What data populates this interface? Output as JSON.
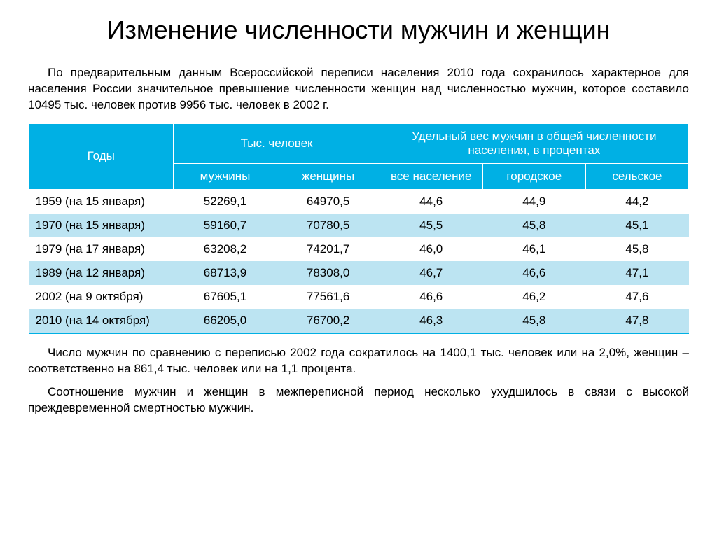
{
  "title": "Изменение численности мужчин и женщин",
  "intro": "По предварительным данным Всероссийской переписи населения 2010 года сохранилось характерное для населения России значительное превышение численности женщин над численностью мужчин, которое составило 10495 тыс. человек против 9956 тыс. человек в 2002 г.",
  "table": {
    "type": "table",
    "header_bg": "#00b0e4",
    "header_text_color": "#ffffff",
    "row_even_bg": "#bce4f2",
    "row_odd_bg": "#ffffff",
    "bottom_border_color": "#00b0e4",
    "columns": {
      "years": "Годы",
      "thousand_people": "Тыс. человек",
      "share": "Удельный вес мужчин в общей численности населения, в процентах",
      "men": "мужчины",
      "women": "женщины",
      "all": "все население",
      "urban": "городское",
      "rural": "сельское"
    },
    "rows": [
      {
        "year": "1959 (на 15 января)",
        "men": "52269,1",
        "women": "64970,5",
        "all": "44,6",
        "urban": "44,9",
        "rural": "44,2"
      },
      {
        "year": "1970 (на 15 января)",
        "men": "59160,7",
        "women": "70780,5",
        "all": "45,5",
        "urban": "45,8",
        "rural": "45,1"
      },
      {
        "year": "1979 (на 17 января)",
        "men": "63208,2",
        "women": "74201,7",
        "all": "46,0",
        "urban": "46,1",
        "rural": "45,8"
      },
      {
        "year": "1989 (на 12 января)",
        "men": "68713,9",
        "women": "78308,0",
        "all": "46,7",
        "urban": "46,6",
        "rural": "47,1"
      },
      {
        "year": "2002 (на 9 октября)",
        "men": "67605,1",
        "women": "77561,6",
        "all": "46,6",
        "urban": "46,2",
        "rural": "47,6"
      },
      {
        "year": "2010 (на 14 октября)",
        "men": "66205,0",
        "women": "76700,2",
        "all": "46,3",
        "urban": "45,8",
        "rural": "47,8"
      }
    ]
  },
  "para1": "Число мужчин по сравнению с переписью 2002 года сократилось на 1400,1 тыс. человек или на 2,0%, женщин – соответственно на 861,4 тыс. человек или на 1,1 процента.",
  "para2": "Соотношение мужчин и женщин в межпереписной период несколько ухудшилось в связи с высокой преждевременной смертностью мужчин."
}
